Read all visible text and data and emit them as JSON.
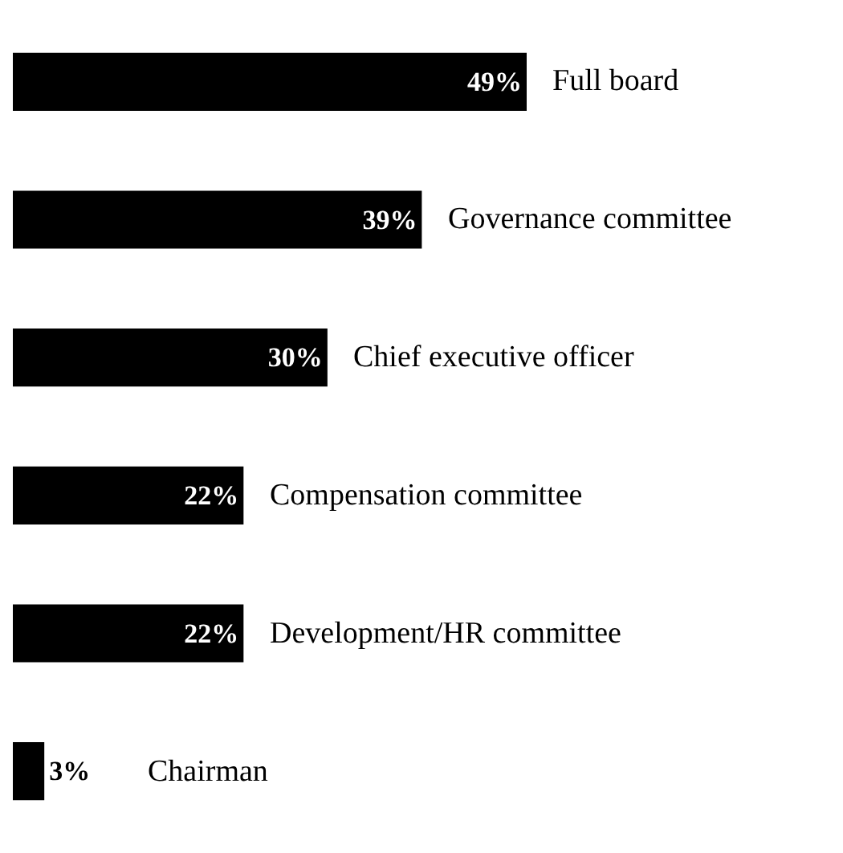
{
  "chart_data": {
    "type": "bar",
    "orientation": "horizontal",
    "categories": [
      "Full board",
      "Governance committee",
      "Chief executive officer",
      "Compensation committee",
      "Development/HR committee",
      "Chairman"
    ],
    "values": [
      49,
      39,
      30,
      22,
      22,
      3
    ],
    "value_labels": [
      "49%",
      "39%",
      "30%",
      "22%",
      "22%",
      "3%"
    ],
    "color": "#000000",
    "tick_labels": false,
    "legend": false
  }
}
